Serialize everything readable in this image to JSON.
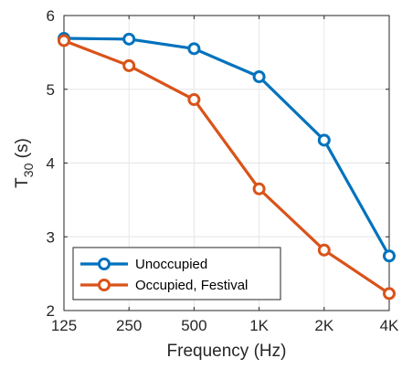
{
  "chart_data": {
    "type": "line",
    "categories": [
      "125",
      "250",
      "500",
      "1K",
      "2K",
      "4K"
    ],
    "xlabel": "Frequency (Hz)",
    "ylabel_main": "T",
    "ylabel_sub": "30",
    "ylabel_unit": " (s)",
    "ylim": [
      2,
      6
    ],
    "yticks": [
      "2",
      "3",
      "4",
      "5",
      "6"
    ],
    "grid": true,
    "legend_position": "bottom-left",
    "series": [
      {
        "name": "Unoccupied",
        "color": "#0072BD",
        "values": [
          5.69,
          5.68,
          5.55,
          5.17,
          4.31,
          2.74
        ]
      },
      {
        "name": "Occupied, Festival",
        "color": "#D95319",
        "values": [
          5.66,
          5.32,
          4.86,
          3.65,
          2.82,
          2.23
        ]
      }
    ]
  }
}
